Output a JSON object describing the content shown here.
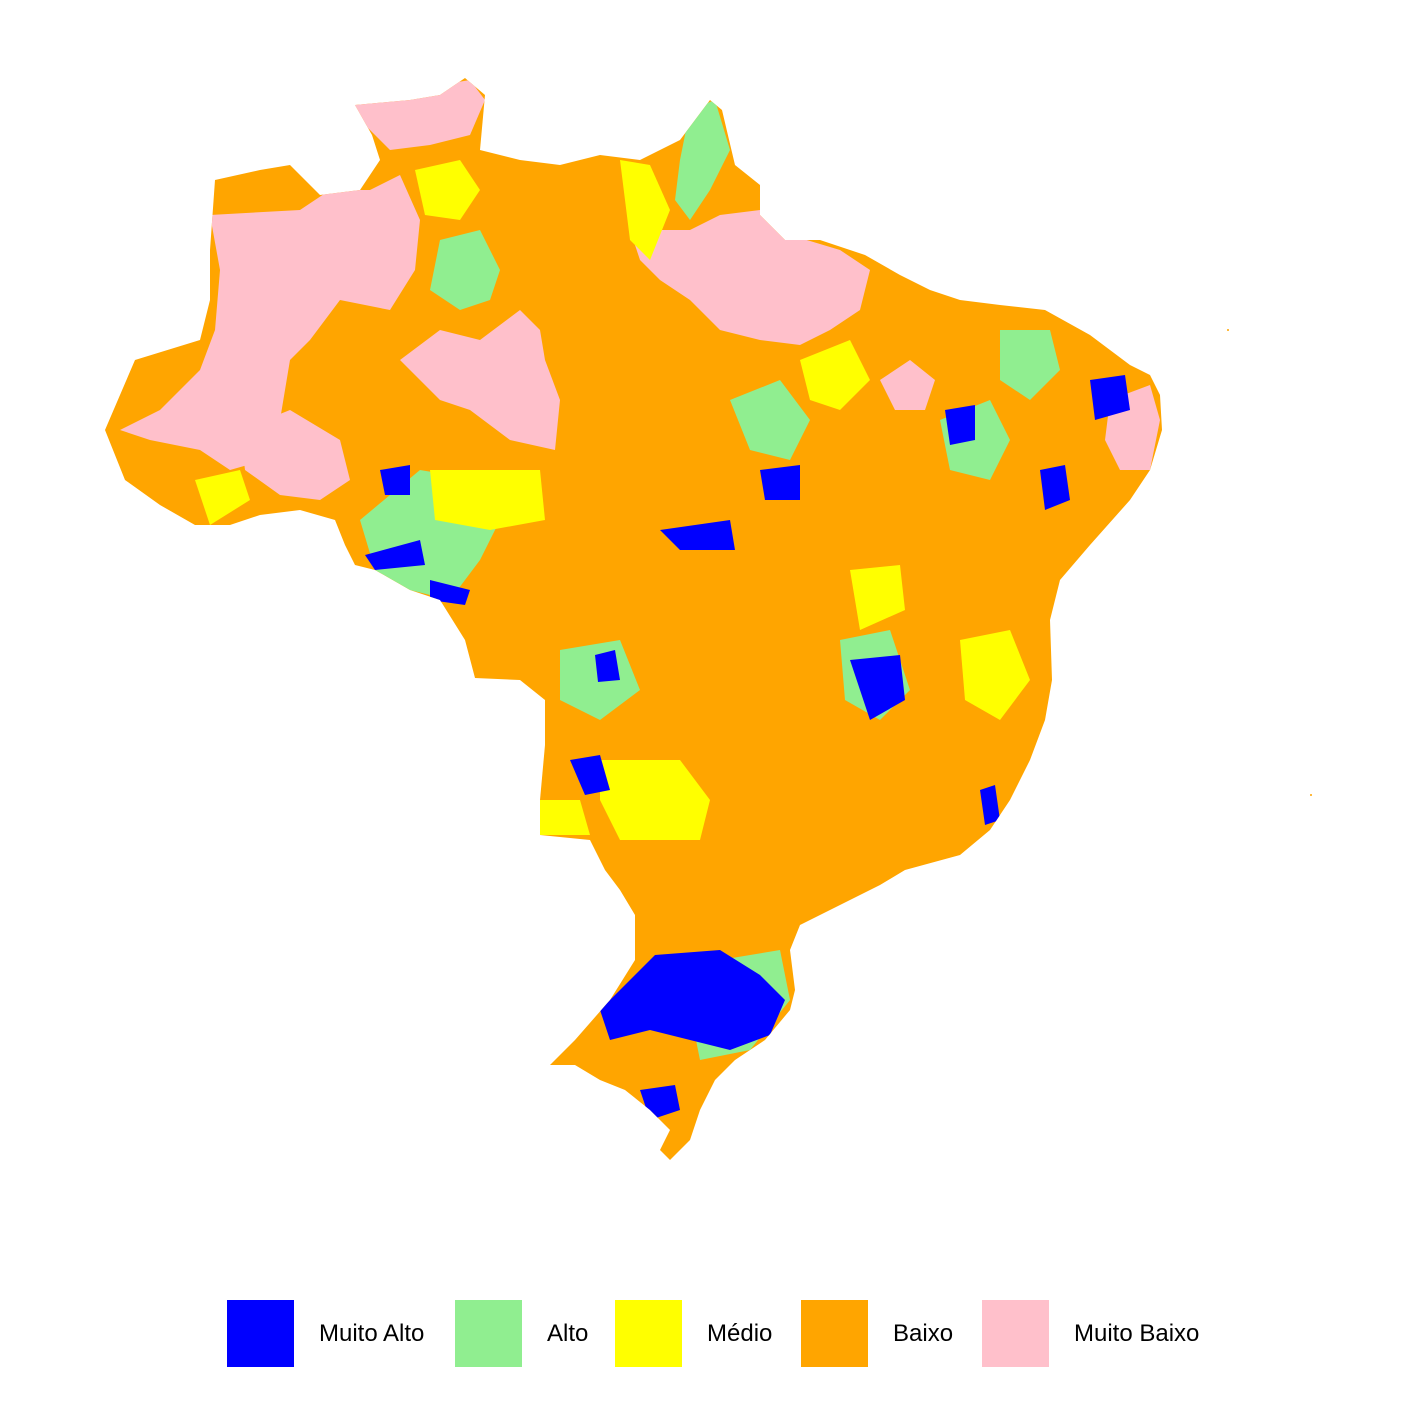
{
  "legend": {
    "items": [
      {
        "label": "Muito Alto",
        "color": "#0000FF"
      },
      {
        "label": "Alto",
        "color": "#90EE90"
      },
      {
        "label": "Médio",
        "color": "#FFFF00"
      },
      {
        "label": "Baixo",
        "color": "#FFA500"
      },
      {
        "label": "Muito Baixo",
        "color": "#FFC0CB"
      }
    ]
  },
  "map": {
    "subject": "Brazil municipalities choropleth",
    "category_colors": {
      "muito_alto": "#0000FF",
      "alto": "#90EE90",
      "medio": "#FFFF00",
      "baixo": "#FFA500",
      "muito_baixo": "#FFC0CB"
    }
  }
}
